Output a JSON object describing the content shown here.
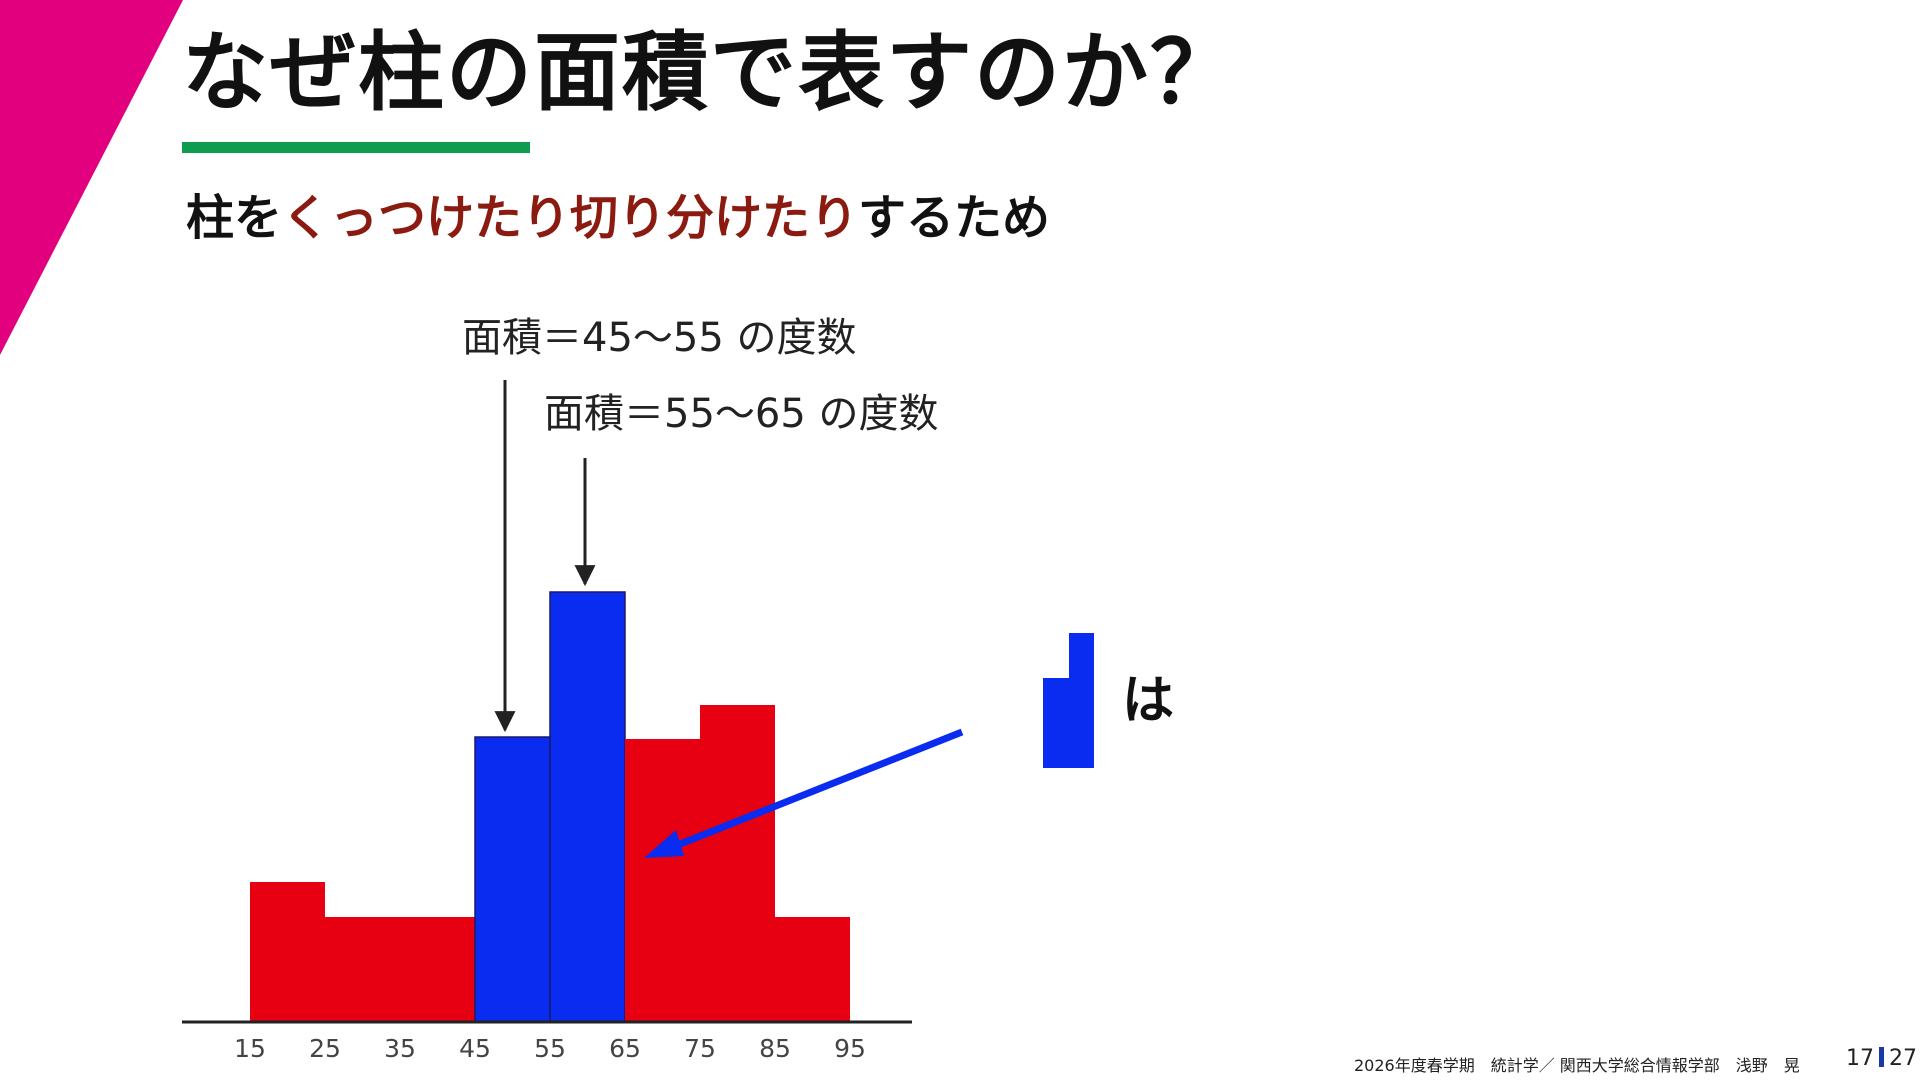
{
  "slide": {
    "title": "なぜ柱の面積で表すのか？",
    "subtitle_pre": "柱を",
    "subtitle_highlight": "くっつけたり切り分けたり",
    "subtitle_post": "するため",
    "annotation_1": "面積＝45～55 の度数",
    "annotation_2": "面積＝55～65 の度数",
    "legend_suffix": "は",
    "footer": "2026年度春学期　統計学／ 関西大学総合情報学部　浅野　晃",
    "page_current": "17",
    "page_total": "27"
  },
  "colors": {
    "accent_magenta": "#e2007f",
    "underline_green": "#0e9c4f",
    "bar_red": "#e60012",
    "bar_blue": "#0a2cf0",
    "highlight_text": "#8b1a10"
  },
  "chart_data": {
    "type": "bar",
    "bins": [
      [
        15,
        25
      ],
      [
        25,
        35
      ],
      [
        35,
        45
      ],
      [
        45,
        55
      ],
      [
        55,
        65
      ],
      [
        65,
        75
      ],
      [
        75,
        85
      ],
      [
        85,
        95
      ]
    ],
    "heights": [
      1.4,
      1.05,
      1.05,
      2.85,
      4.3,
      2.83,
      3.17,
      1.05
    ],
    "colors": [
      "red",
      "red",
      "red",
      "blue",
      "blue",
      "red",
      "red",
      "red"
    ],
    "x_ticks": [
      "15",
      "25",
      "35",
      "45",
      "55",
      "65",
      "75",
      "85",
      "95"
    ]
  }
}
